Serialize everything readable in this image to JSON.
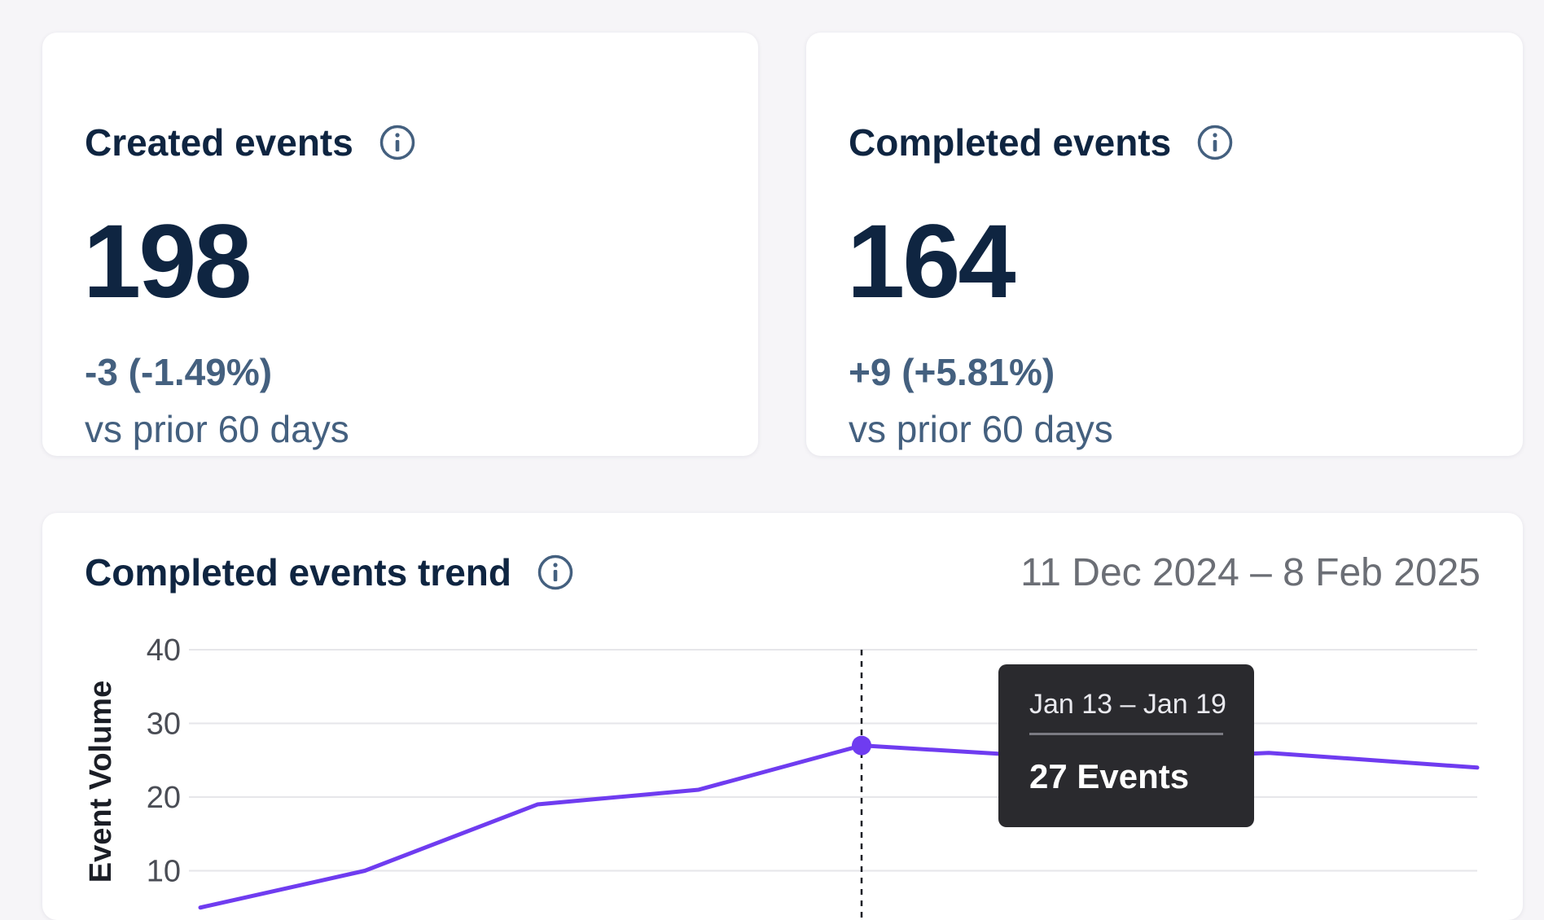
{
  "cards": {
    "created": {
      "title": "Created events",
      "value": "198",
      "delta": "-3 (-1.49%)",
      "period": "vs prior 60 days"
    },
    "completed": {
      "title": "Completed events",
      "value": "164",
      "delta": "+9 (+5.81%)",
      "period": "vs prior 60 days"
    }
  },
  "trend": {
    "title": "Completed events trend",
    "date_range": "11 Dec 2024 – 8 Feb 2025",
    "tooltip": {
      "range": "Jan 13 – Jan 19",
      "value": "27 Events"
    }
  },
  "icons": {
    "info": "info-circle-icon"
  },
  "colors": {
    "line": "#6f3cf0",
    "text_primary": "#0f2541",
    "text_secondary": "#44607f"
  },
  "chart_data": {
    "type": "line",
    "title": "Completed events trend",
    "ylabel": "Event Volume",
    "ylim": [
      0,
      40
    ],
    "yticks": [
      "40",
      "30",
      "20",
      "10"
    ],
    "grid": true,
    "series": [
      {
        "values": [
          5,
          10,
          19,
          21,
          27,
          25,
          26,
          24
        ]
      }
    ],
    "highlight_index": 4
  }
}
